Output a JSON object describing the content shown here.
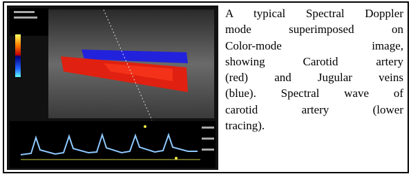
{
  "caption": {
    "lines": [
      "A typical Spectral Doppler",
      "mode superimposed on",
      "Color-mode image,",
      "showing Carotid artery",
      "(red) and Jugular veins",
      "(blue). Spectral wave of",
      "carotid artery (lower",
      "tracing)."
    ]
  }
}
